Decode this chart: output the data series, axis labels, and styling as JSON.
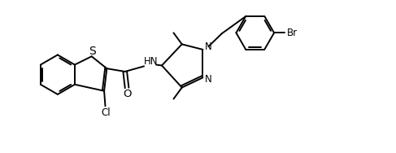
{
  "background_color": "#ffffff",
  "line_color": "#000000",
  "line_width": 1.4,
  "font_size": 8.5,
  "figsize": [
    4.87,
    1.88
  ],
  "dpi": 100,
  "xlim": [
    0,
    10
  ],
  "ylim": [
    0,
    4
  ]
}
